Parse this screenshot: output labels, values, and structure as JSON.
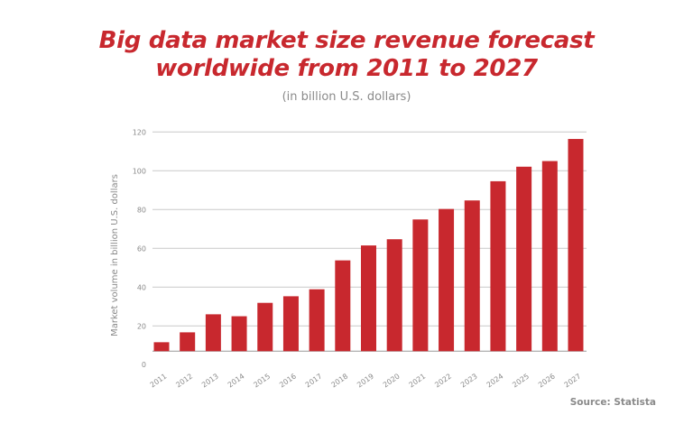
{
  "chart_data": {
    "type": "bar",
    "title_line1": "Big data market size revenue forecast",
    "title_line2": "worldwide from 2011 to 2027",
    "subtitle": "(in billion U.S. dollars)",
    "xlabel": "",
    "ylabel": "Market volume in billion U.S. dollars",
    "categories": [
      "2011",
      "2012",
      "2013",
      "2014",
      "2015",
      "2016",
      "2017",
      "2018",
      "2019",
      "2020",
      "2021",
      "2022",
      "2023",
      "2024",
      "2025",
      "2026",
      "2027"
    ],
    "values": [
      11.6,
      16.7,
      26,
      25,
      31.9,
      35.3,
      38.9,
      53.8,
      61.5,
      64.7,
      74.9,
      80.3,
      84.7,
      94.6,
      102.1,
      105,
      116.4
    ],
    "yticks": [
      0,
      20,
      40,
      60,
      80,
      100,
      120
    ],
    "ylim": [
      0,
      120
    ],
    "grid": true,
    "bar_color": "#c8282e",
    "title_color": "#c8282e",
    "source": "Source: Statista"
  }
}
